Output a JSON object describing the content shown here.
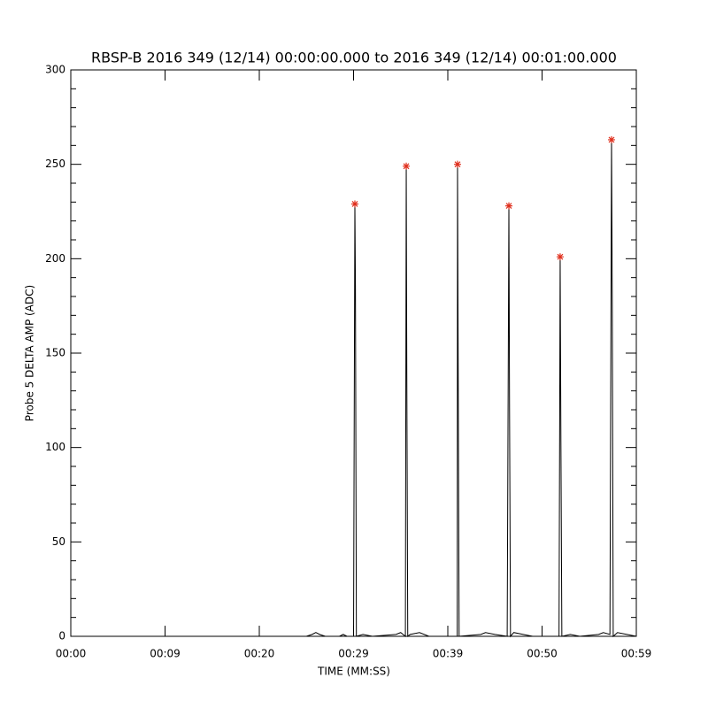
{
  "chart_data": {
    "type": "line",
    "title": "RBSP-B 2016 349 (12/14) 00:00:00.000 to 2016 349 (12/14) 00:01:00.000",
    "x_label": "TIME (MM:SS)",
    "y_label": "Probe 5 DELTA AMP (ADC)",
    "xlim": [
      0,
      60
    ],
    "ylim": [
      0,
      300
    ],
    "xticks": [
      {
        "value": 0,
        "label": "00:00"
      },
      {
        "value": 10,
        "label": "00:09"
      },
      {
        "value": 20,
        "label": "00:20"
      },
      {
        "value": 30,
        "label": "00:29"
      },
      {
        "value": 40,
        "label": "00:39"
      },
      {
        "value": 50,
        "label": "00:50"
      },
      {
        "value": 60,
        "label": "00:59"
      }
    ],
    "yticks": [
      0,
      50,
      100,
      150,
      200,
      250,
      300
    ],
    "yminorticks": [
      10,
      20,
      30,
      40,
      60,
      70,
      80,
      90,
      110,
      120,
      130,
      140,
      160,
      170,
      180,
      190,
      210,
      220,
      230,
      240,
      260,
      270,
      280,
      290
    ],
    "series": [
      {
        "type": "line",
        "color": "#000000",
        "x": [
          0,
          25,
          25.6,
          26,
          26.4,
          27,
          28.5,
          28.9,
          29.3,
          30.0,
          30.14,
          30.2,
          30.3,
          31,
          32,
          34.5,
          35,
          35.5,
          35.59,
          35.65,
          35.75,
          36,
          37,
          38,
          41.0,
          41.03,
          41.1,
          41.2,
          43.5,
          44,
          45,
          46.3,
          46.48,
          46.55,
          46.65,
          47,
          48,
          49,
          51.8,
          51.92,
          52,
          52.1,
          53,
          54,
          56,
          56.5,
          57.2,
          57.37,
          57.45,
          57.55,
          58,
          59,
          60
        ],
        "values": [
          0,
          0,
          1,
          2,
          1,
          0,
          0,
          1,
          0,
          0,
          229,
          185,
          0,
          1,
          0,
          1,
          2,
          0,
          249,
          139,
          0,
          1,
          2,
          0,
          0,
          250,
          145,
          0,
          1,
          2,
          1,
          0,
          228,
          121,
          0,
          2,
          1,
          0,
          0,
          201,
          103,
          0,
          1,
          0,
          1,
          2,
          1,
          263,
          175,
          0,
          2,
          1,
          0
        ]
      },
      {
        "type": "scatter",
        "marker": "*",
        "color": "#e0301e",
        "x": [
          30.14,
          35.59,
          41.03,
          46.48,
          51.92,
          57.37
        ],
        "values": [
          229,
          249,
          250,
          228,
          201,
          263
        ]
      }
    ]
  }
}
